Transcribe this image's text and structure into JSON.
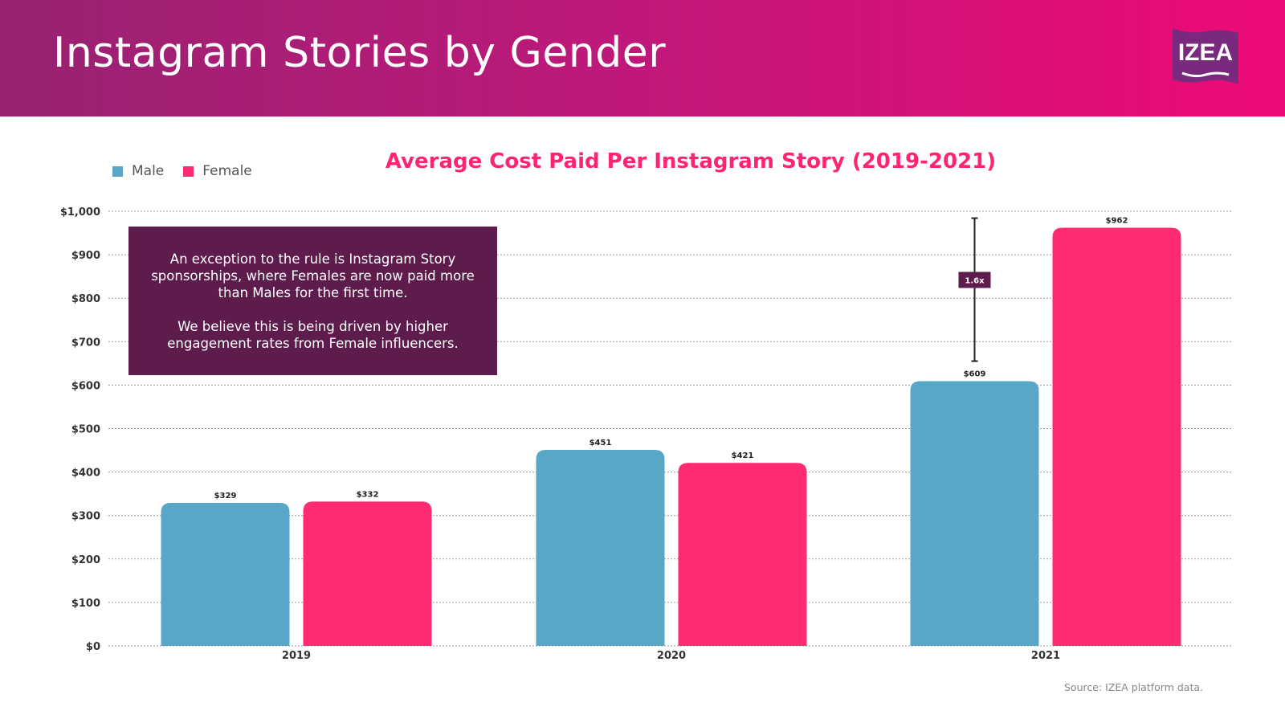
{
  "header": {
    "title": "Instagram Stories by Gender"
  },
  "logo": {
    "text": "IZEA"
  },
  "legend": [
    {
      "label": "Male",
      "color": "#58a7c6"
    },
    {
      "label": "Female",
      "color": "#fe2a73"
    }
  ],
  "note": {
    "paragraphs": [
      "An exception to the rule is Instagram Story sponsorships, where Females are now paid more than Males for the first time.",
      "We believe this is being driven by higher engagement rates from Female influencers."
    ]
  },
  "annotation": {
    "label": "1.6x"
  },
  "source": "Source: IZEA platform data.",
  "chart_data": {
    "type": "bar",
    "title": "Average Cost Paid Per Instagram Story (2019-2021)",
    "categories": [
      "2019",
      "2020",
      "2021"
    ],
    "series": [
      {
        "name": "Male",
        "color": "#58a7c6",
        "values": [
          329,
          451,
          609
        ],
        "labels": [
          "$329",
          "$451",
          "$609"
        ]
      },
      {
        "name": "Female",
        "color": "#fe2a73",
        "values": [
          332,
          421,
          962
        ],
        "labels": [
          "$332",
          "$421",
          "$962"
        ]
      }
    ],
    "ylim": [
      0,
      1000
    ],
    "yticks": [
      0,
      100,
      200,
      300,
      400,
      500,
      600,
      700,
      800,
      900,
      1000
    ],
    "ytick_labels": [
      "$0",
      "$100",
      "$200",
      "$300",
      "$400",
      "$500",
      "$600",
      "$700",
      "$800",
      "$900",
      "$1,000"
    ],
    "grid": true,
    "legend_position": "top-left"
  }
}
